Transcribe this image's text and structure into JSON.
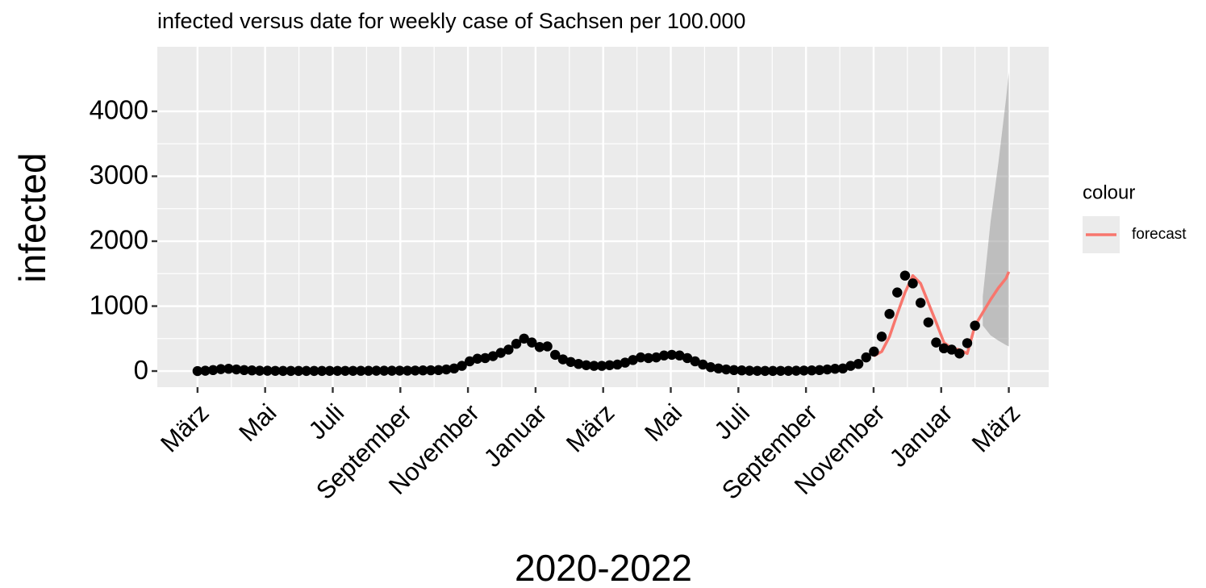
{
  "chart_data": {
    "type": "line",
    "title": "infected versus date for weekly case of Sachsen per 100.000",
    "x_label": "2020-2022",
    "y_label": "infected",
    "xlim": [
      -1.19,
      25.18
    ],
    "xticks": [
      {
        "value": 0,
        "label": "März"
      },
      {
        "value": 2,
        "label": "Mai"
      },
      {
        "value": 4,
        "label": "Juli"
      },
      {
        "value": 6,
        "label": "September"
      },
      {
        "value": 8,
        "label": "November"
      },
      {
        "value": 10,
        "label": "Januar"
      },
      {
        "value": 12,
        "label": "März"
      },
      {
        "value": 14,
        "label": "Mai"
      },
      {
        "value": 16,
        "label": "Juli"
      },
      {
        "value": 18,
        "label": "September"
      },
      {
        "value": 20,
        "label": "November"
      },
      {
        "value": 22,
        "label": "Januar"
      },
      {
        "value": 24,
        "label": "März"
      }
    ],
    "ylim": [
      -248,
      4994
    ],
    "yticks": [
      0,
      1000,
      2000,
      3000,
      4000
    ],
    "grid": true,
    "legend": "right",
    "legend_title": "colour",
    "points": {
      "color": "#000000",
      "x": [
        0,
        0.23,
        0.46,
        0.69,
        0.92,
        1.15,
        1.38,
        1.61,
        1.84,
        2.07,
        2.3,
        2.53,
        2.76,
        2.99,
        3.22,
        3.45,
        3.68,
        3.91,
        4.14,
        4.37,
        4.6,
        4.83,
        5.06,
        5.29,
        5.52,
        5.75,
        5.98,
        6.21,
        6.44,
        6.67,
        6.9,
        7.13,
        7.36,
        7.59,
        7.82,
        8.05,
        8.28,
        8.51,
        8.74,
        8.97,
        9.2,
        9.43,
        9.66,
        9.89,
        10.12,
        10.35,
        10.58,
        10.81,
        11.04,
        11.27,
        11.5,
        11.73,
        11.96,
        12.19,
        12.42,
        12.65,
        12.88,
        13.11,
        13.34,
        13.57,
        13.8,
        14.03,
        14.26,
        14.49,
        14.72,
        14.95,
        15.18,
        15.41,
        15.64,
        15.87,
        16.1,
        16.33,
        16.56,
        16.79,
        17.02,
        17.25,
        17.48,
        17.71,
        17.94,
        18.17,
        18.4,
        18.63,
        18.86,
        19.09,
        19.32,
        19.55,
        19.78,
        20.01,
        20.24,
        20.47,
        20.7,
        20.93,
        21.16,
        21.39,
        21.62,
        21.85,
        22.08,
        22.31,
        22.54,
        22.77,
        23.0
      ],
      "values": [
        0,
        5,
        15,
        30,
        35,
        25,
        15,
        10,
        5,
        5,
        3,
        2,
        2,
        2,
        2,
        2,
        2,
        3,
        3,
        3,
        3,
        4,
        4,
        5,
        5,
        5,
        6,
        6,
        8,
        10,
        12,
        15,
        25,
        40,
        80,
        150,
        190,
        200,
        230,
        280,
        330,
        420,
        500,
        440,
        370,
        380,
        250,
        180,
        140,
        110,
        90,
        80,
        80,
        90,
        100,
        130,
        170,
        210,
        200,
        210,
        240,
        250,
        240,
        200,
        150,
        100,
        60,
        40,
        25,
        15,
        10,
        5,
        3,
        2,
        2,
        3,
        3,
        5,
        8,
        10,
        15,
        25,
        35,
        40,
        80,
        110,
        210,
        300,
        530,
        880,
        1210,
        1470,
        1350,
        1050,
        750,
        440,
        350,
        330,
        270,
        430,
        700
      ]
    },
    "series": [
      {
        "name": "forecast",
        "color": "#f8766d",
        "x": [
          20.0,
          20.24,
          20.47,
          20.7,
          20.93,
          21.16,
          21.39,
          21.62,
          21.85,
          22.08,
          22.31,
          22.54,
          22.77,
          23.0,
          23.23,
          23.46,
          23.69,
          23.92,
          24.0
        ],
        "values": [
          230,
          300,
          530,
          880,
          1210,
          1470,
          1350,
          1050,
          750,
          440,
          350,
          330,
          270,
          700,
          900,
          1100,
          1280,
          1430,
          1530
        ]
      }
    ],
    "band": {
      "color": "#999999",
      "x": [
        23.23,
        23.46,
        23.69,
        23.92,
        24.0
      ],
      "lower": [
        700,
        550,
        470,
        400,
        380
      ],
      "upper": [
        1150,
        2300,
        3200,
        4200,
        4600
      ]
    }
  }
}
